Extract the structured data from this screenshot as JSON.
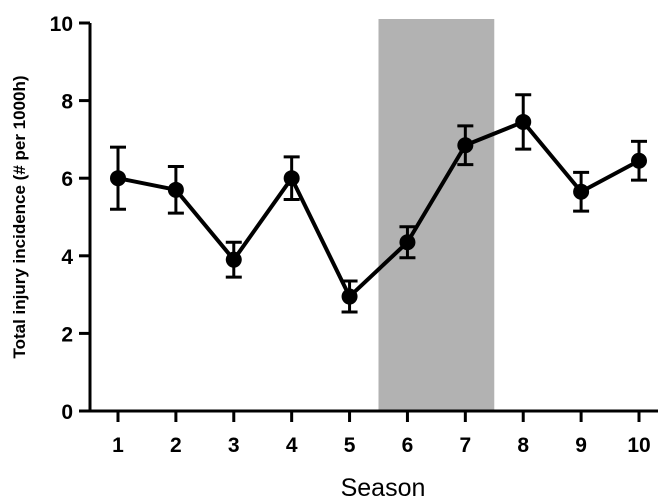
{
  "chart_data": {
    "type": "line",
    "xlabel": "Season",
    "ylabel": "Total injury incidence (# per 1000h)",
    "categories": [
      "1",
      "2",
      "3",
      "4",
      "5",
      "6",
      "7",
      "8",
      "9",
      "10"
    ],
    "series": [
      {
        "values": [
          6.0,
          5.7,
          3.9,
          6.0,
          2.95,
          4.35,
          6.85,
          7.45,
          5.65,
          6.45
        ],
        "error": [
          0.8,
          0.6,
          0.45,
          0.55,
          0.4,
          0.4,
          0.5,
          0.7,
          0.5,
          0.5
        ]
      }
    ],
    "ylim": [
      0,
      10
    ],
    "yticks": [
      "0",
      "2",
      "4",
      "6",
      "8",
      "10"
    ],
    "highlight_band": {
      "from": "6",
      "to": "7",
      "color": "#b2b2b2"
    },
    "line_color": "#000000",
    "grid": false,
    "legend": "none"
  }
}
